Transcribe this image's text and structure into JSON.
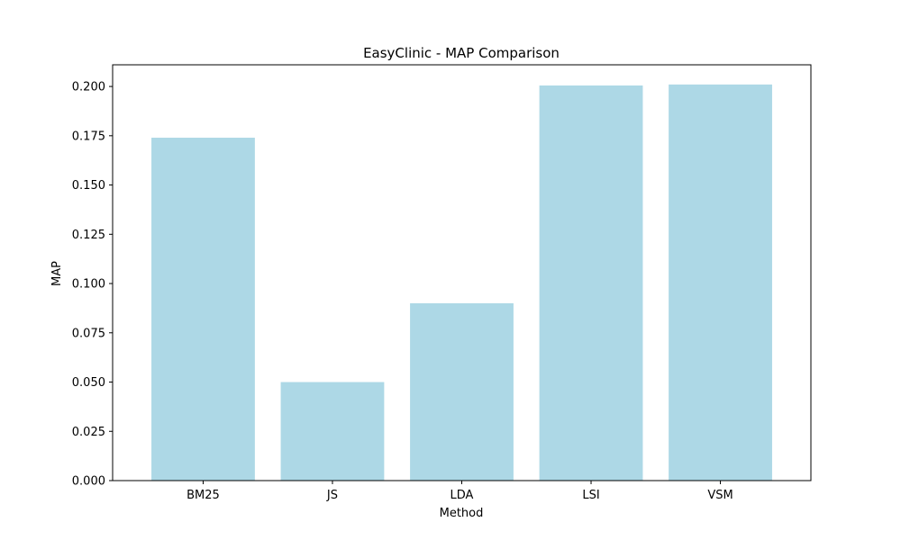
{
  "chart_data": {
    "type": "bar",
    "title": "EasyClinic - MAP Comparison",
    "xlabel": "Method",
    "ylabel": "MAP",
    "categories": [
      "BM25",
      "JS",
      "LDA",
      "LSI",
      "VSM"
    ],
    "values": [
      0.174,
      0.05,
      0.09,
      0.2005,
      0.201
    ],
    "ylim": [
      0,
      0.211
    ],
    "yticks": [
      0.0,
      0.025,
      0.05,
      0.075,
      0.1,
      0.125,
      0.15,
      0.175,
      0.2
    ],
    "ytick_labels": [
      "0.000",
      "0.025",
      "0.050",
      "0.075",
      "0.100",
      "0.125",
      "0.150",
      "0.175",
      "0.200"
    ],
    "grid": false,
    "bar_color": "#add8e6"
  }
}
